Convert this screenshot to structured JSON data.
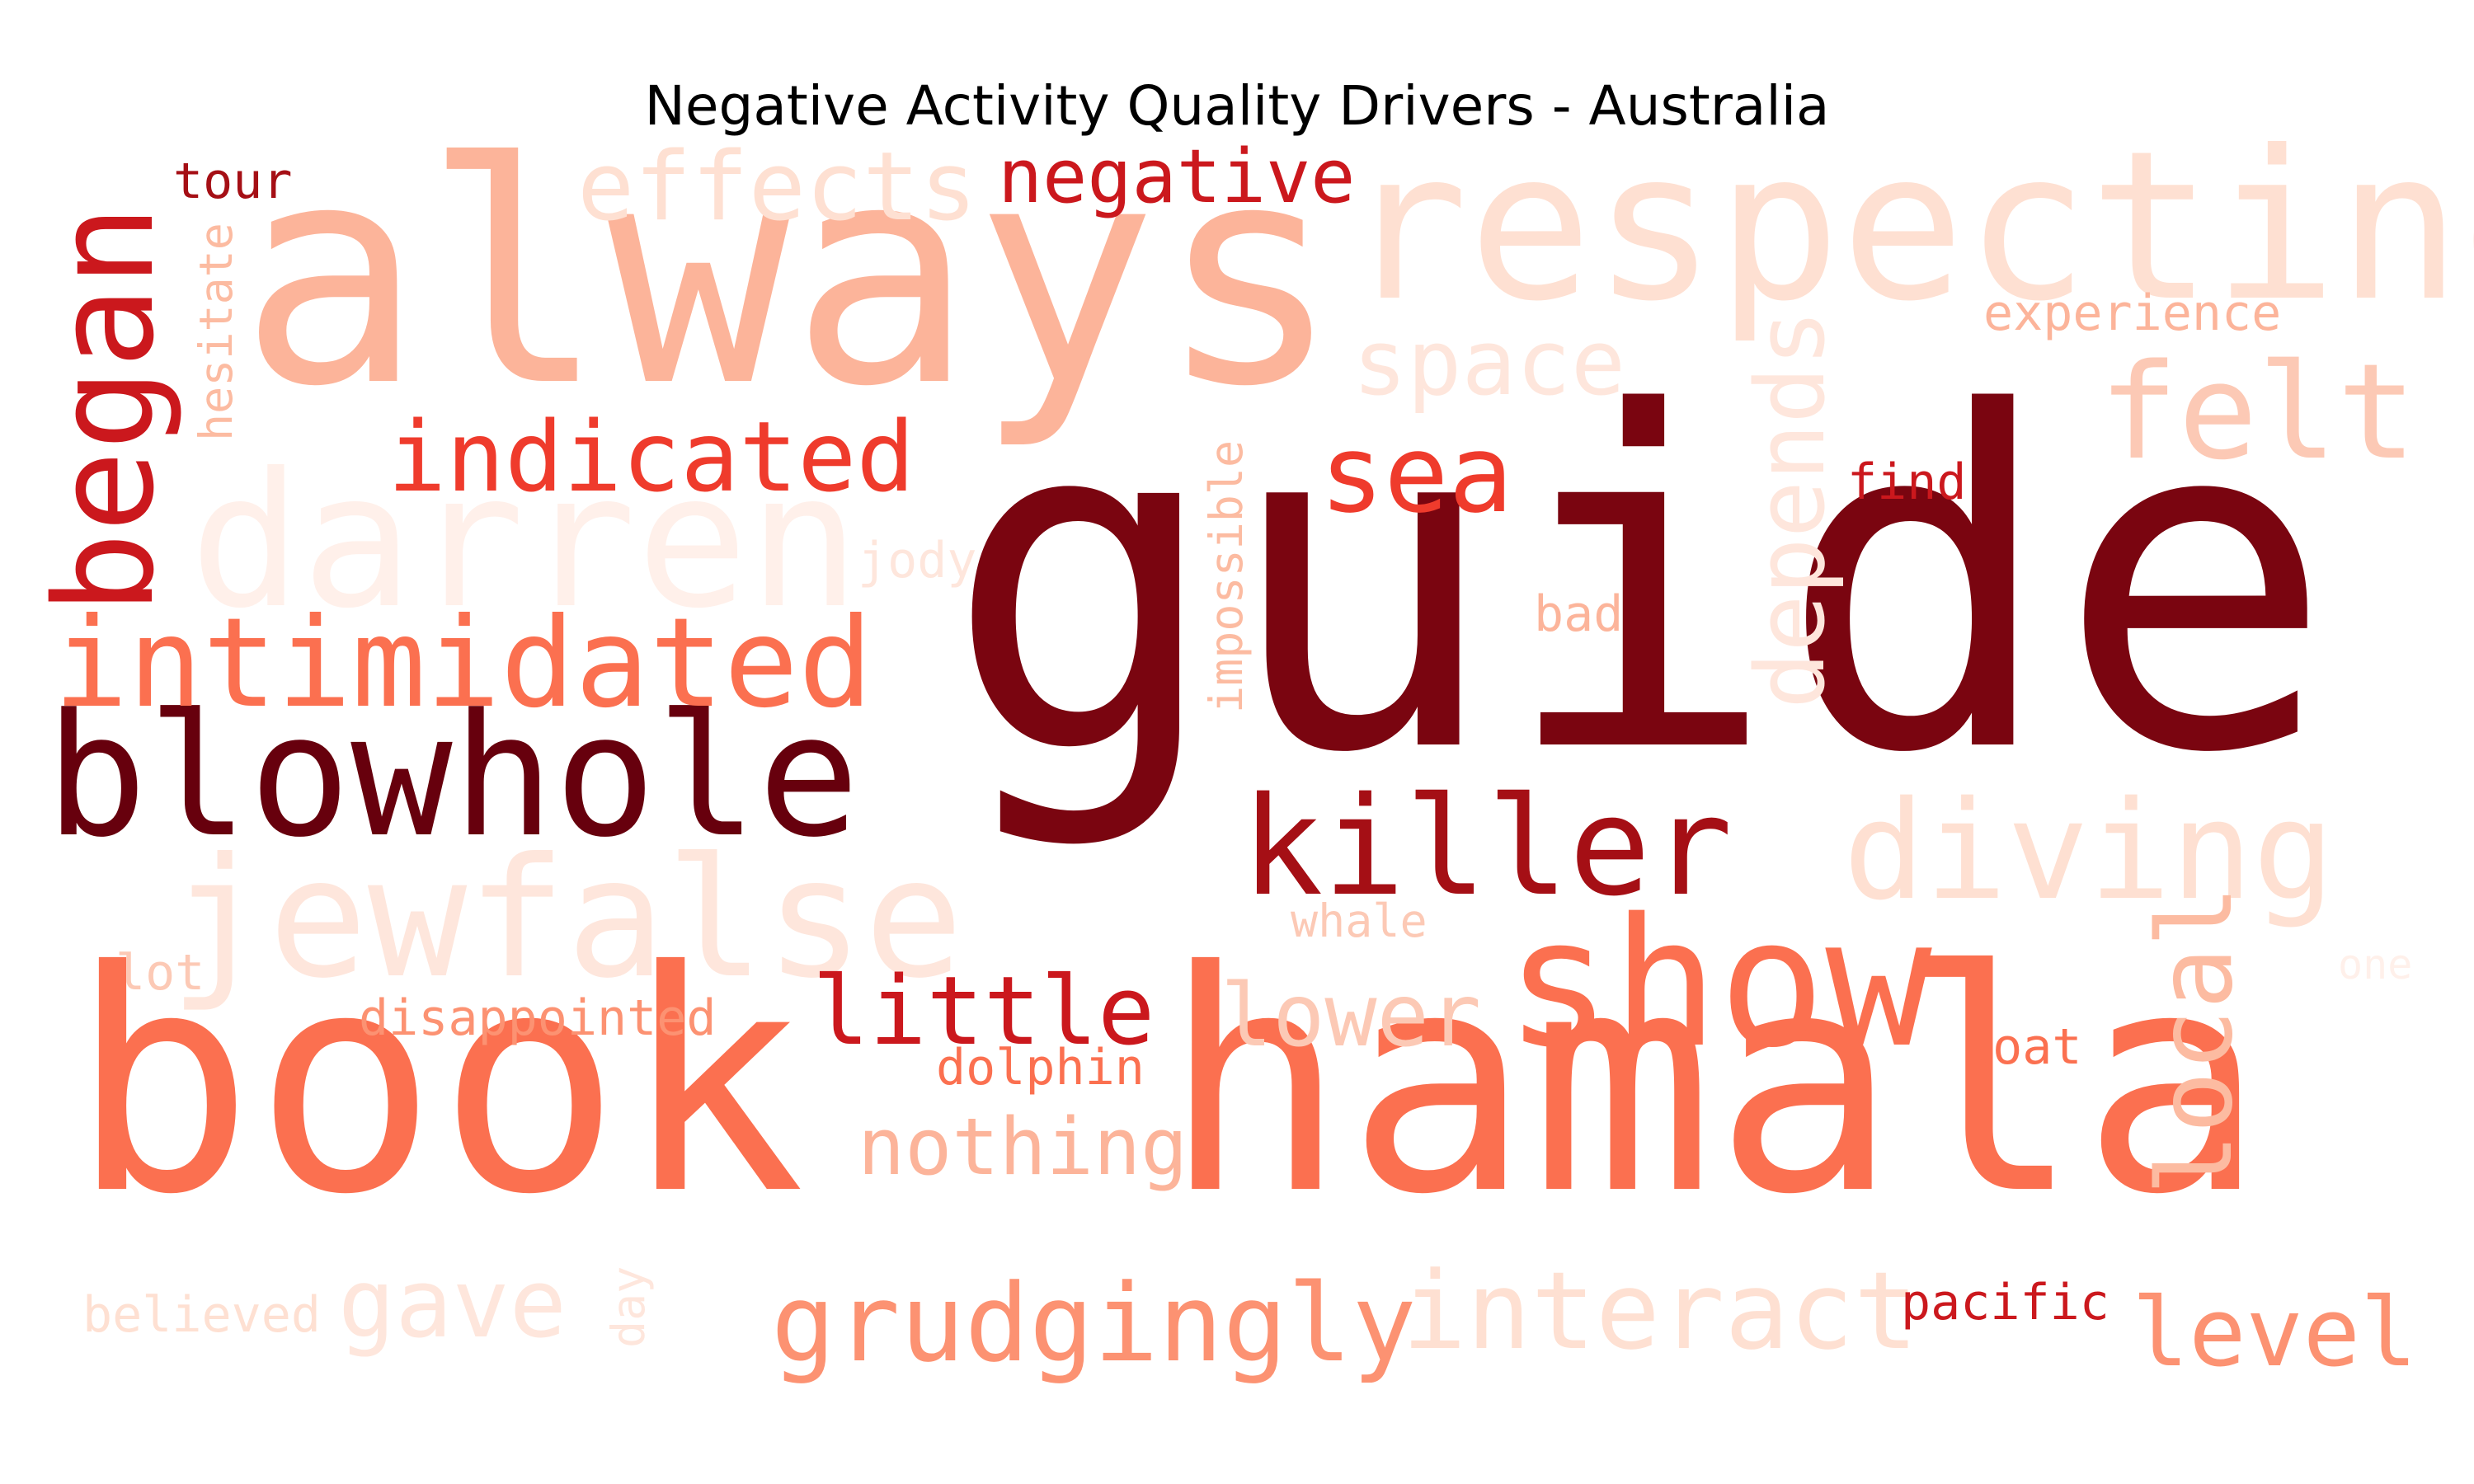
{
  "title": "Negative Activity Quality Drivers - Australia",
  "colors": {
    "darkest": "#67000d",
    "very_dark": "#7a0510",
    "dark": "#a50f15",
    "medium_dark": "#cb181d",
    "medium": "#ef3b2c",
    "medium_light": "#fb6a4a",
    "light": "#fc9272",
    "lighter": "#fcbba1",
    "lightest": "#fee0d2",
    "palest": "#fff0ea"
  },
  "words": [
    {
      "text": "guide",
      "color": "#7a0510",
      "vertical": false
    },
    {
      "text": "book",
      "color": "#fb7050",
      "vertical": false
    },
    {
      "text": "hamala",
      "color": "#fb7050",
      "vertical": false
    },
    {
      "text": "always",
      "color": "#fcb49a",
      "vertical": false
    },
    {
      "text": "respecting",
      "color": "#fee0d2",
      "vertical": false
    },
    {
      "text": "blowhole",
      "color": "#67000d",
      "vertical": false
    },
    {
      "text": "darren",
      "color": "#fff0ea",
      "vertical": false
    },
    {
      "text": "jewfalse",
      "color": "#fee6dc",
      "vertical": false
    },
    {
      "text": "show",
      "color": "#fb7050",
      "vertical": false
    },
    {
      "text": "killer",
      "color": "#a50f15",
      "vertical": false
    },
    {
      "text": "diving",
      "color": "#fee0d2",
      "vertical": false
    },
    {
      "text": "intimidated",
      "color": "#fb7050",
      "vertical": false
    },
    {
      "text": "indicated",
      "color": "#ef3b2c",
      "vertical": false
    },
    {
      "text": "began",
      "color": "#cb181d",
      "vertical": true
    },
    {
      "text": "effects",
      "color": "#fee0d2",
      "vertical": false
    },
    {
      "text": "negative",
      "color": "#cb181d",
      "vertical": false
    },
    {
      "text": "space",
      "color": "#fee6dc",
      "vertical": false
    },
    {
      "text": "felt",
      "color": "#fcc9b5",
      "vertical": false
    },
    {
      "text": "sea",
      "color": "#ef3b2c",
      "vertical": false
    },
    {
      "text": "depends",
      "color": "#fee6dc",
      "vertical": true
    },
    {
      "text": "local",
      "color": "#fcbba1",
      "vertical": true
    },
    {
      "text": "little",
      "color": "#cb181d",
      "vertical": false
    },
    {
      "text": "lower",
      "color": "#fcc9b5",
      "vertical": false
    },
    {
      "text": "nothing",
      "color": "#fcb49a",
      "vertical": false
    },
    {
      "text": "grudgingly",
      "color": "#fc9272",
      "vertical": false
    },
    {
      "text": "interact",
      "color": "#fee0d2",
      "vertical": false
    },
    {
      "text": "level",
      "color": "#fc9272",
      "vertical": false
    },
    {
      "text": "gave",
      "color": "#fee6dc",
      "vertical": false
    },
    {
      "text": "tour",
      "color": "#a50f15",
      "vertical": false
    },
    {
      "text": "hesitate",
      "color": "#fcbba1",
      "vertical": true
    },
    {
      "text": "experience",
      "color": "#fcb49a",
      "vertical": false
    },
    {
      "text": "find",
      "color": "#cb181d",
      "vertical": false
    },
    {
      "text": "jody",
      "color": "#fee6dc",
      "vertical": false
    },
    {
      "text": "impossible",
      "color": "#fcbba1",
      "vertical": true
    },
    {
      "text": "bad",
      "color": "#fcb49a",
      "vertical": false
    },
    {
      "text": "whale",
      "color": "#fcc9b5",
      "vertical": false
    },
    {
      "text": "one",
      "color": "#fff0ea",
      "vertical": false
    },
    {
      "text": "lot",
      "color": "#fcc9b5",
      "vertical": false
    },
    {
      "text": "disappointed",
      "color": "#fc9272",
      "vertical": false
    },
    {
      "text": "dolphin",
      "color": "#fb7050",
      "vertical": false
    },
    {
      "text": "boat",
      "color": "#fb7050",
      "vertical": false
    },
    {
      "text": "pacific",
      "color": "#cb181d",
      "vertical": false
    },
    {
      "text": "believed",
      "color": "#fee0d2",
      "vertical": false
    },
    {
      "text": "day",
      "color": "#fee6dc",
      "vertical": true
    }
  ]
}
